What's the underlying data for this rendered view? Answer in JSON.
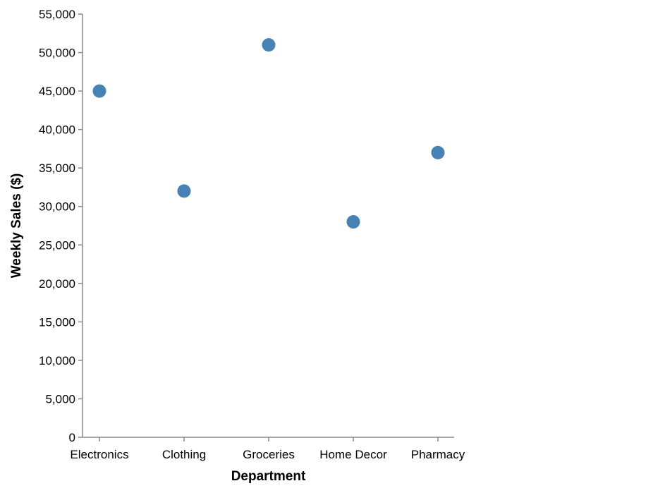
{
  "chart_data": {
    "type": "scatter",
    "categories": [
      "Electronics",
      "Clothing",
      "Groceries",
      "Home Decor",
      "Pharmacy"
    ],
    "series": [
      {
        "values": [
          45000,
          32000,
          51000,
          28000,
          37000
        ]
      }
    ],
    "xlabel": "Department",
    "ylabel": "Weekly Sales ($)",
    "ylim": [
      0,
      55000
    ],
    "yticks": [
      "0",
      "5,000",
      "10,000",
      "15,000",
      "20,000",
      "25,000",
      "30,000",
      "35,000",
      "40,000",
      "45,000",
      "50,000",
      "55,000"
    ],
    "grid": false,
    "colors": {
      "point": "#4682b4",
      "axis": "#888888"
    }
  }
}
